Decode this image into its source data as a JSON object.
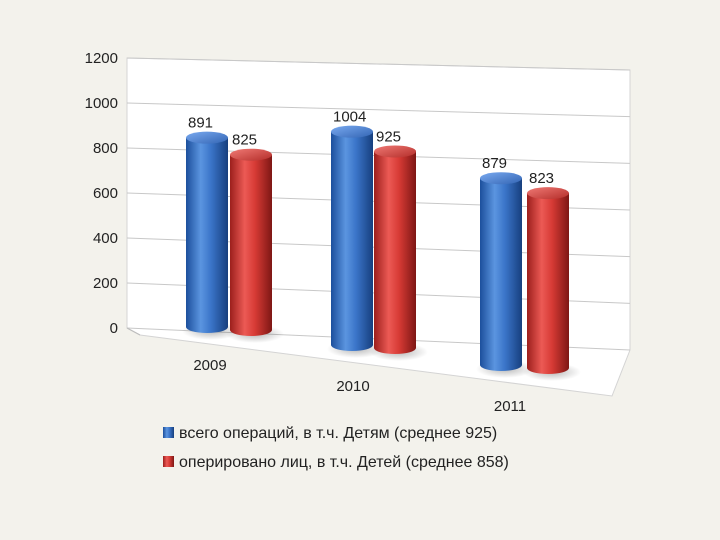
{
  "chart_data": {
    "type": "bar",
    "style": "3d-cylinder",
    "categories": [
      "2009",
      "2010",
      "2011"
    ],
    "series": [
      {
        "name": "всего операций, в т.ч. Детям (среднее 925)",
        "values": [
          891,
          1004,
          879
        ],
        "labels": [
          "891",
          "1004",
          "879"
        ],
        "color": "#3a74c8"
      },
      {
        "name": "оперировано лиц, в т.ч. Детей (среднее 858)",
        "values": [
          825,
          925,
          823
        ],
        "labels": [
          "825",
          "925",
          "823"
        ],
        "color": "#d63a35"
      }
    ],
    "y_ticks": [
      "0",
      "200",
      "400",
      "600",
      "800",
      "1000",
      "1200"
    ],
    "ylim": [
      0,
      1200
    ],
    "grid": true,
    "legend": "bottom",
    "title": "",
    "xlabel": "",
    "ylabel": ""
  },
  "colors": {
    "background": "#f3f2ec",
    "wall": "#ffffff",
    "gridline": "#c8c8c8"
  }
}
